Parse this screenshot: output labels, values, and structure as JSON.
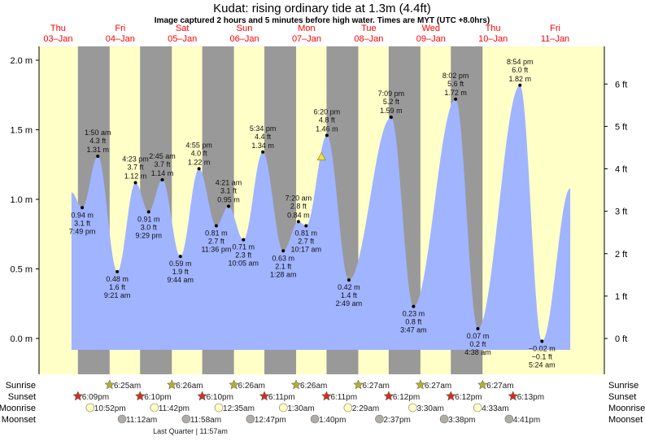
{
  "title": "Kudat: rising  ordinary tide at 1.3m (4.4ft)",
  "subtitle": "Image captured 2 hours and 5 minutes before high water. Times are MYT (UTC +8.0hrs)",
  "colors": {
    "day": "#ffffc8",
    "night": "#999999",
    "water": "#a0b4ff",
    "day_label": "#ff0000",
    "sunrise_icon": "#b0b030",
    "sunset_icon": "#d03020",
    "moonrise_icon": "#ffffc0",
    "moonset_icon": "#b0aca8",
    "current_marker": "#f0e040"
  },
  "days": [
    {
      "dow": "Thu",
      "date": "03–Jan"
    },
    {
      "dow": "Fri",
      "date": "04–Jan"
    },
    {
      "dow": "Sat",
      "date": "05–Jan"
    },
    {
      "dow": "Sun",
      "date": "06–Jan"
    },
    {
      "dow": "Mon",
      "date": "07–Jan"
    },
    {
      "dow": "Tue",
      "date": "08–Jan"
    },
    {
      "dow": "Wed",
      "date": "09–Jan"
    },
    {
      "dow": "Thu",
      "date": "10–Jan"
    },
    {
      "dow": "Fri",
      "date": "11–Jan"
    }
  ],
  "chart_data": {
    "type": "area",
    "title": "Kudat: rising  ordinary tide at 1.3m (4.4ft)",
    "y_left": {
      "unit": "m",
      "range": [
        -0.08,
        2.1
      ],
      "ticks": [
        "0.0 m",
        "0.5 m",
        "1.0 m",
        "1.5 m",
        "2.0 m"
      ],
      "tick_values": [
        0,
        0.5,
        1.0,
        1.5,
        2.0
      ]
    },
    "y_right": {
      "unit": "ft",
      "ticks": [
        "0 ft",
        "1 ft",
        "2 ft",
        "3 ft",
        "4 ft",
        "5 ft",
        "6 ft"
      ],
      "tick_values": [
        0,
        1,
        2,
        3,
        4,
        5,
        6
      ]
    },
    "current": {
      "day": 4,
      "time": "16:15",
      "height_m": 1.3,
      "height_ft": 4.4,
      "state": "rising"
    },
    "curve_start": {
      "day": 0,
      "time": "15:40",
      "height_m": 1.05
    },
    "curve_end": {
      "day": 8,
      "time": "16:20",
      "height_m": 1.08
    },
    "extremes": [
      {
        "type": "low",
        "day": 0,
        "time": "19:49",
        "label": "7:49 pm",
        "m": "0.94 m",
        "ft": "3.1 ft",
        "value": 0.94
      },
      {
        "type": "high",
        "day": 1,
        "time": "01:50",
        "label": "1:50 am",
        "m": "1.31 m",
        "ft": "4.3 ft",
        "value": 1.31
      },
      {
        "type": "low",
        "day": 1,
        "time": "09:21",
        "label": "9:21 am",
        "m": "0.48 m",
        "ft": "1.6 ft",
        "value": 0.48
      },
      {
        "type": "high",
        "day": 1,
        "time": "16:23",
        "label": "4:23 pm",
        "m": "1.12 m",
        "ft": "3.7 ft",
        "value": 1.12
      },
      {
        "type": "low",
        "day": 1,
        "time": "21:29",
        "label": "9:29 pm",
        "m": "0.91 m",
        "ft": "3.0 ft",
        "value": 0.91
      },
      {
        "type": "high",
        "day": 2,
        "time": "02:45",
        "label": "2:45 am",
        "m": "1.14 m",
        "ft": "3.7 ft",
        "value": 1.14
      },
      {
        "type": "low",
        "day": 2,
        "time": "09:44",
        "label": "9:44 am",
        "m": "0.59 m",
        "ft": "1.9 ft",
        "value": 0.59
      },
      {
        "type": "high",
        "day": 2,
        "time": "16:55",
        "label": "4:55 pm",
        "m": "1.22 m",
        "ft": "4.0 ft",
        "value": 1.22
      },
      {
        "type": "low",
        "day": 2,
        "time": "23:36",
        "label": "11:36 pm",
        "m": "0.81 m",
        "ft": "2.7 ft",
        "value": 0.81
      },
      {
        "type": "high",
        "day": 3,
        "time": "04:21",
        "label": "4:21 am",
        "m": "0.95 m",
        "ft": "3.1 ft",
        "value": 0.95
      },
      {
        "type": "low",
        "day": 3,
        "time": "10:05",
        "label": "10:05 am",
        "m": "0.71 m",
        "ft": "2.3 ft",
        "value": 0.71
      },
      {
        "type": "high",
        "day": 3,
        "time": "17:34",
        "label": "5:34 pm",
        "m": "1.34 m",
        "ft": "4.4 ft",
        "value": 1.34
      },
      {
        "type": "low",
        "day": 4,
        "time": "01:28",
        "label": "1:28 am",
        "m": "0.63 m",
        "ft": "2.1 ft",
        "value": 0.63
      },
      {
        "type": "high",
        "day": 4,
        "time": "07:20",
        "label": "7:20 am",
        "m": "0.84 m",
        "ft": "2.8 ft",
        "value": 0.84
      },
      {
        "type": "low",
        "day": 4,
        "time": "10:17",
        "label": "10:17 am",
        "m": "0.81 m",
        "ft": "2.7 ft",
        "value": 0.81
      },
      {
        "type": "high",
        "day": 4,
        "time": "18:20",
        "label": "6:20 pm",
        "m": "1.46 m",
        "ft": "4.8 ft",
        "value": 1.46
      },
      {
        "type": "low",
        "day": 5,
        "time": "02:49",
        "label": "2:49 am",
        "m": "0.42 m",
        "ft": "1.4 ft",
        "value": 0.42
      },
      {
        "type": "high",
        "day": 5,
        "time": "19:09",
        "label": "7:09 pm",
        "m": "1.59 m",
        "ft": "5.2 ft",
        "value": 1.59
      },
      {
        "type": "low",
        "day": 6,
        "time": "03:47",
        "label": "3:47 am",
        "m": "0.23 m",
        "ft": "0.8 ft",
        "value": 0.23
      },
      {
        "type": "high",
        "day": 6,
        "time": "20:02",
        "label": "8:02 pm",
        "m": "1.72 m",
        "ft": "5.6 ft",
        "value": 1.72
      },
      {
        "type": "low",
        "day": 7,
        "time": "04:38",
        "label": "4:38 am",
        "m": "0.07 m",
        "ft": "0.2 ft",
        "value": 0.07
      },
      {
        "type": "high",
        "day": 7,
        "time": "20:54",
        "label": "8:54 pm",
        "m": "1.82 m",
        "ft": "6.0 ft",
        "value": 1.82
      },
      {
        "type": "low",
        "day": 8,
        "time": "05:24",
        "label": "5:24 am",
        "m": "−0.02 m",
        "ft": "−0.1 ft",
        "value": -0.02
      }
    ]
  },
  "astro": {
    "row_labels": {
      "sunrise": "Sunrise",
      "sunset": "Sunset",
      "moonrise": "Moonrise",
      "moonset": "Moonset"
    },
    "sunrise": [
      {
        "day": 1,
        "time": "06:25",
        "label": "6:25am"
      },
      {
        "day": 2,
        "time": "06:26",
        "label": "6:26am"
      },
      {
        "day": 3,
        "time": "06:26",
        "label": "6:26am"
      },
      {
        "day": 4,
        "time": "06:26",
        "label": "6:26am"
      },
      {
        "day": 5,
        "time": "06:27",
        "label": "6:27am"
      },
      {
        "day": 6,
        "time": "06:27",
        "label": "6:27am"
      },
      {
        "day": 7,
        "time": "06:27",
        "label": "6:27am"
      }
    ],
    "sunset": [
      {
        "day": 0,
        "time": "18:09",
        "label": "6:09pm"
      },
      {
        "day": 1,
        "time": "18:10",
        "label": "6:10pm"
      },
      {
        "day": 2,
        "time": "18:10",
        "label": "6:10pm"
      },
      {
        "day": 3,
        "time": "18:11",
        "label": "6:11pm"
      },
      {
        "day": 4,
        "time": "18:11",
        "label": "6:11pm"
      },
      {
        "day": 5,
        "time": "18:12",
        "label": "6:12pm"
      },
      {
        "day": 6,
        "time": "18:12",
        "label": "6:12pm"
      },
      {
        "day": 7,
        "time": "18:13",
        "label": "6:13pm"
      }
    ],
    "moonrise": [
      {
        "day": 0,
        "time": "22:52",
        "label": "10:52pm"
      },
      {
        "day": 1,
        "time": "23:42",
        "label": "11:42pm"
      },
      {
        "day": 3,
        "time": "00:35",
        "label": "12:35am"
      },
      {
        "day": 4,
        "time": "01:30",
        "label": "1:30am"
      },
      {
        "day": 5,
        "time": "02:29",
        "label": "2:29am"
      },
      {
        "day": 6,
        "time": "03:30",
        "label": "3:30am"
      },
      {
        "day": 7,
        "time": "04:33",
        "label": "4:33am"
      }
    ],
    "moonset": [
      {
        "day": 1,
        "time": "11:12",
        "label": "11:12am"
      },
      {
        "day": 2,
        "time": "11:58",
        "label": "11:58am"
      },
      {
        "day": 3,
        "time": "12:47",
        "label": "12:47pm"
      },
      {
        "day": 4,
        "time": "13:40",
        "label": "1:40pm"
      },
      {
        "day": 5,
        "time": "14:37",
        "label": "2:37pm"
      },
      {
        "day": 6,
        "time": "15:38",
        "label": "3:38pm"
      },
      {
        "day": 7,
        "time": "16:41",
        "label": "4:41pm"
      }
    ],
    "moon_phase": "Last Quarter | 11:57am"
  }
}
